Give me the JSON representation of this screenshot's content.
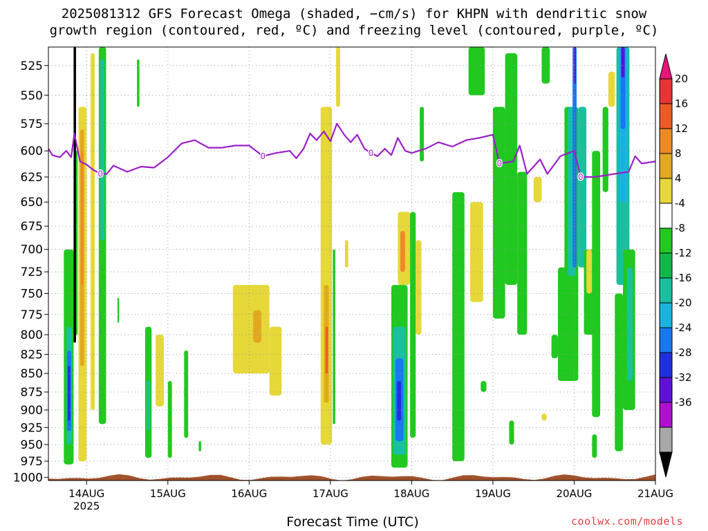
{
  "title_line1": "2025081312 GFS Forecast Omega (shaded, −cm/s) for KHPN with dendritic snow",
  "title_line2": "growth region (contoured, red, ºC) and freezing level (contoured, purple, ºC)",
  "credit": "coolwx.com/models",
  "colors": {
    "freezing_line": "#9a1fc8",
    "ground": "#a0522d",
    "grid": "#9a9a9a",
    "sounding_line": "#000000"
  },
  "chart_data": {
    "type": "heatmap",
    "xlabel": "Forecast Time (UTC)",
    "x_ticks": [
      "14AUG",
      "15AUG",
      "16AUG",
      "17AUG",
      "18AUG",
      "19AUG",
      "20AUG",
      "21AUG"
    ],
    "x_year_label": "2025",
    "y_ticks": [
      525,
      550,
      575,
      600,
      625,
      650,
      675,
      700,
      725,
      750,
      775,
      800,
      825,
      850,
      875,
      900,
      925,
      950,
      975,
      1000
    ],
    "y_scale": "log-pressure",
    "grid": true,
    "colorbar": {
      "labels": [
        20,
        16,
        12,
        8,
        4,
        -4,
        -8,
        -12,
        -16,
        -20,
        -24,
        -28,
        -32,
        -36
      ],
      "bins": [
        {
          "color": "#e8167a"
        },
        {
          "color": "#e83434"
        },
        {
          "color": "#ee5a24"
        },
        {
          "color": "#ee8a24"
        },
        {
          "color": "#e2a820"
        },
        {
          "color": "#e6d838"
        },
        {
          "color": "#ffffff"
        },
        {
          "color": "#20c820"
        },
        {
          "color": "#10b84a"
        },
        {
          "color": "#18c0a0"
        },
        {
          "color": "#18b4e0"
        },
        {
          "color": "#1878f0"
        },
        {
          "color": "#2030e0"
        },
        {
          "color": "#6010d8"
        },
        {
          "color": "#b010d0"
        },
        {
          "color": "#a8a8a8"
        },
        {
          "color": "#000000"
        }
      ]
    },
    "freezing_level": {
      "contour_label": "0",
      "series": [
        {
          "t": 13.53,
          "p": 598
        },
        {
          "t": 13.58,
          "p": 604
        },
        {
          "t": 13.67,
          "p": 606
        },
        {
          "t": 13.75,
          "p": 600
        },
        {
          "t": 13.81,
          "p": 606
        },
        {
          "t": 13.85,
          "p": 584
        },
        {
          "t": 13.92,
          "p": 610
        },
        {
          "t": 14.0,
          "p": 613
        },
        {
          "t": 14.08,
          "p": 618
        },
        {
          "t": 14.17,
          "p": 622
        },
        {
          "t": 14.25,
          "p": 622
        },
        {
          "t": 14.33,
          "p": 614
        },
        {
          "t": 14.5,
          "p": 620
        },
        {
          "t": 14.67,
          "p": 615
        },
        {
          "t": 14.83,
          "p": 616
        },
        {
          "t": 15.0,
          "p": 606
        },
        {
          "t": 15.17,
          "p": 593
        },
        {
          "t": 15.33,
          "p": 590
        },
        {
          "t": 15.5,
          "p": 597
        },
        {
          "t": 15.67,
          "p": 597
        },
        {
          "t": 15.83,
          "p": 595
        },
        {
          "t": 16.0,
          "p": 595
        },
        {
          "t": 16.17,
          "p": 605
        },
        {
          "t": 16.33,
          "p": 602
        },
        {
          "t": 16.5,
          "p": 600
        },
        {
          "t": 16.58,
          "p": 607
        },
        {
          "t": 16.67,
          "p": 598
        },
        {
          "t": 16.75,
          "p": 584
        },
        {
          "t": 16.83,
          "p": 590
        },
        {
          "t": 16.92,
          "p": 582
        },
        {
          "t": 17.0,
          "p": 591
        },
        {
          "t": 17.08,
          "p": 575
        },
        {
          "t": 17.17,
          "p": 585
        },
        {
          "t": 17.25,
          "p": 592
        },
        {
          "t": 17.33,
          "p": 585
        },
        {
          "t": 17.42,
          "p": 598
        },
        {
          "t": 17.5,
          "p": 602
        },
        {
          "t": 17.58,
          "p": 605
        },
        {
          "t": 17.67,
          "p": 598
        },
        {
          "t": 17.75,
          "p": 604
        },
        {
          "t": 17.83,
          "p": 588
        },
        {
          "t": 17.92,
          "p": 600
        },
        {
          "t": 18.0,
          "p": 602
        },
        {
          "t": 18.17,
          "p": 598
        },
        {
          "t": 18.33,
          "p": 592
        },
        {
          "t": 18.5,
          "p": 596
        },
        {
          "t": 18.67,
          "p": 590
        },
        {
          "t": 18.83,
          "p": 588
        },
        {
          "t": 19.0,
          "p": 585
        },
        {
          "t": 19.08,
          "p": 612
        },
        {
          "t": 19.25,
          "p": 610
        },
        {
          "t": 19.33,
          "p": 595
        },
        {
          "t": 19.42,
          "p": 622
        },
        {
          "t": 19.58,
          "p": 608
        },
        {
          "t": 19.67,
          "p": 622
        },
        {
          "t": 19.83,
          "p": 605
        },
        {
          "t": 20.0,
          "p": 600
        },
        {
          "t": 20.08,
          "p": 625
        },
        {
          "t": 20.25,
          "p": 625
        },
        {
          "t": 20.5,
          "p": 622
        },
        {
          "t": 20.67,
          "p": 620
        },
        {
          "t": 20.75,
          "p": 605
        },
        {
          "t": 20.83,
          "p": 612
        },
        {
          "t": 21.0,
          "p": 610
        }
      ]
    },
    "omega_regions": [
      {
        "t0": 13.72,
        "t1": 13.84,
        "p0": 980,
        "p1": 700,
        "c": "#20c820"
      },
      {
        "t0": 13.75,
        "t1": 13.82,
        "p0": 950,
        "p1": 790,
        "c": "#18c0a0"
      },
      {
        "t0": 13.76,
        "t1": 13.81,
        "p0": 930,
        "p1": 820,
        "c": "#1878f0"
      },
      {
        "t0": 13.77,
        "t1": 13.8,
        "p0": 915,
        "p1": 840,
        "c": "#2030e0"
      },
      {
        "t0": 13.84,
        "t1": 13.87,
        "p0": 810,
        "p1": 510,
        "c": "#000000"
      },
      {
        "t0": 13.87,
        "t1": 13.89,
        "p0": 800,
        "p1": 600,
        "c": "#20c820"
      },
      {
        "t0": 13.9,
        "t1": 14.0,
        "p0": 975,
        "p1": 560,
        "c": "#e6d838"
      },
      {
        "t0": 13.92,
        "t1": 13.97,
        "p0": 840,
        "p1": 580,
        "c": "#e2a820"
      },
      {
        "t0": 13.93,
        "t1": 13.96,
        "p0": 740,
        "p1": 600,
        "c": "#ee8a24"
      },
      {
        "t0": 14.05,
        "t1": 14.1,
        "p0": 900,
        "p1": 515,
        "c": "#e6d838"
      },
      {
        "t0": 14.15,
        "t1": 14.24,
        "p0": 920,
        "p1": 510,
        "c": "#20c820"
      },
      {
        "t0": 14.17,
        "t1": 14.22,
        "p0": 690,
        "p1": 520,
        "c": "#18c0a0"
      },
      {
        "t0": 14.38,
        "t1": 14.4,
        "p0": 785,
        "p1": 755,
        "c": "#20c820"
      },
      {
        "t0": 14.62,
        "t1": 14.65,
        "p0": 560,
        "p1": 520,
        "c": "#20c820"
      },
      {
        "t0": 14.72,
        "t1": 14.8,
        "p0": 970,
        "p1": 790,
        "c": "#20c820"
      },
      {
        "t0": 14.74,
        "t1": 14.78,
        "p0": 930,
        "p1": 860,
        "c": "#18c0a0"
      },
      {
        "t0": 14.85,
        "t1": 14.95,
        "p0": 895,
        "p1": 800,
        "c": "#e6d838"
      },
      {
        "t0": 15.0,
        "t1": 15.05,
        "p0": 970,
        "p1": 860,
        "c": "#20c820"
      },
      {
        "t0": 15.2,
        "t1": 15.25,
        "p0": 940,
        "p1": 820,
        "c": "#20c820"
      },
      {
        "t0": 15.38,
        "t1": 15.41,
        "p0": 960,
        "p1": 945,
        "c": "#20c820"
      },
      {
        "t0": 15.8,
        "t1": 16.25,
        "p0": 850,
        "p1": 740,
        "c": "#e6d838"
      },
      {
        "t0": 16.05,
        "t1": 16.15,
        "p0": 810,
        "p1": 770,
        "c": "#e2a820"
      },
      {
        "t0": 16.25,
        "t1": 16.4,
        "p0": 880,
        "p1": 790,
        "c": "#e6d838"
      },
      {
        "t0": 16.88,
        "t1": 17.02,
        "p0": 950,
        "p1": 560,
        "c": "#e6d838"
      },
      {
        "t0": 16.92,
        "t1": 16.98,
        "p0": 890,
        "p1": 740,
        "c": "#e2a820"
      },
      {
        "t0": 16.94,
        "t1": 16.97,
        "p0": 850,
        "p1": 790,
        "c": "#ee5a24"
      },
      {
        "t0": 17.03,
        "t1": 17.06,
        "p0": 920,
        "p1": 700,
        "c": "#20c820"
      },
      {
        "t0": 17.07,
        "t1": 17.12,
        "p0": 560,
        "p1": 510,
        "c": "#e6d838"
      },
      {
        "t0": 17.18,
        "t1": 17.22,
        "p0": 720,
        "p1": 690,
        "c": "#e6d838"
      },
      {
        "t0": 17.75,
        "t1": 17.95,
        "p0": 985,
        "p1": 740,
        "c": "#20c820"
      },
      {
        "t0": 17.77,
        "t1": 17.93,
        "p0": 965,
        "p1": 790,
        "c": "#18c0a0"
      },
      {
        "t0": 17.8,
        "t1": 17.9,
        "p0": 945,
        "p1": 830,
        "c": "#1878f0"
      },
      {
        "t0": 17.82,
        "t1": 17.87,
        "p0": 915,
        "p1": 860,
        "c": "#2030e0"
      },
      {
        "t0": 17.83,
        "t1": 17.98,
        "p0": 740,
        "p1": 660,
        "c": "#e6d838"
      },
      {
        "t0": 17.86,
        "t1": 17.92,
        "p0": 725,
        "p1": 680,
        "c": "#ee8a24"
      },
      {
        "t0": 17.98,
        "t1": 18.05,
        "p0": 940,
        "p1": 660,
        "c": "#20c820"
      },
      {
        "t0": 18.05,
        "t1": 18.12,
        "p0": 800,
        "p1": 690,
        "c": "#e6d838"
      },
      {
        "t0": 18.1,
        "t1": 18.15,
        "p0": 610,
        "p1": 560,
        "c": "#20c820"
      },
      {
        "t0": 18.5,
        "t1": 18.65,
        "p0": 975,
        "p1": 640,
        "c": "#20c820"
      },
      {
        "t0": 18.72,
        "t1": 18.88,
        "p0": 760,
        "p1": 650,
        "c": "#e6d838"
      },
      {
        "t0": 18.7,
        "t1": 18.9,
        "p0": 550,
        "p1": 510,
        "c": "#20c820"
      },
      {
        "t0": 18.85,
        "t1": 18.92,
        "p0": 875,
        "p1": 860,
        "c": "#20c820"
      },
      {
        "t0": 19.0,
        "t1": 19.15,
        "p0": 780,
        "p1": 560,
        "c": "#20c820"
      },
      {
        "t0": 19.15,
        "t1": 19.3,
        "p0": 740,
        "p1": 515,
        "c": "#20c820"
      },
      {
        "t0": 19.3,
        "t1": 19.42,
        "p0": 800,
        "p1": 620,
        "c": "#20c820"
      },
      {
        "t0": 19.5,
        "t1": 19.6,
        "p0": 650,
        "p1": 625,
        "c": "#e6d838"
      },
      {
        "t0": 19.6,
        "t1": 19.7,
        "p0": 540,
        "p1": 510,
        "c": "#20c820"
      },
      {
        "t0": 19.72,
        "t1": 19.8,
        "p0": 830,
        "p1": 800,
        "c": "#20c820"
      },
      {
        "t0": 19.8,
        "t1": 20.0,
        "p0": 860,
        "p1": 720,
        "c": "#20c820"
      },
      {
        "t0": 19.88,
        "t1": 20.05,
        "p0": 860,
        "p1": 560,
        "c": "#20c820"
      },
      {
        "t0": 19.92,
        "t1": 20.02,
        "p0": 730,
        "p1": 560,
        "c": "#18c0a0"
      },
      {
        "t0": 19.98,
        "t1": 20.03,
        "p0": 720,
        "p1": 510,
        "c": "#1878f0"
      },
      {
        "t0": 20.0,
        "t1": 20.02,
        "p0": 540,
        "p1": 510,
        "c": "#6010d8"
      },
      {
        "t0": 20.05,
        "t1": 20.15,
        "p0": 720,
        "p1": 560,
        "c": "#18c0a0"
      },
      {
        "t0": 20.12,
        "t1": 20.3,
        "p0": 800,
        "p1": 700,
        "c": "#20c820"
      },
      {
        "t0": 20.15,
        "t1": 20.22,
        "p0": 750,
        "p1": 700,
        "c": "#e6d838"
      },
      {
        "t0": 20.22,
        "t1": 20.32,
        "p0": 910,
        "p1": 600,
        "c": "#20c820"
      },
      {
        "t0": 20.35,
        "t1": 20.42,
        "p0": 640,
        "p1": 560,
        "c": "#20c820"
      },
      {
        "t0": 20.42,
        "t1": 20.5,
        "p0": 560,
        "p1": 530,
        "c": "#e6d838"
      },
      {
        "t0": 20.52,
        "t1": 20.68,
        "p0": 740,
        "p1": 510,
        "c": "#18c0a0"
      },
      {
        "t0": 20.55,
        "t1": 20.66,
        "p0": 650,
        "p1": 510,
        "c": "#18b4e0"
      },
      {
        "t0": 20.57,
        "t1": 20.63,
        "p0": 580,
        "p1": 510,
        "c": "#1878f0"
      },
      {
        "t0": 20.58,
        "t1": 20.62,
        "p0": 535,
        "p1": 510,
        "c": "#6010d8"
      },
      {
        "t0": 20.5,
        "t1": 20.6,
        "p0": 960,
        "p1": 750,
        "c": "#20c820"
      },
      {
        "t0": 20.6,
        "t1": 20.75,
        "p0": 900,
        "p1": 700,
        "c": "#20c820"
      },
      {
        "t0": 20.65,
        "t1": 20.72,
        "p0": 860,
        "p1": 720,
        "c": "#18c0a0"
      },
      {
        "t0": 20.22,
        "t1": 20.28,
        "p0": 970,
        "p1": 935,
        "c": "#20c820"
      },
      {
        "t0": 19.2,
        "t1": 19.26,
        "p0": 950,
        "p1": 915,
        "c": "#20c820"
      },
      {
        "t0": 19.6,
        "t1": 19.66,
        "p0": 915,
        "p1": 905,
        "c": "#e6d838"
      }
    ]
  }
}
